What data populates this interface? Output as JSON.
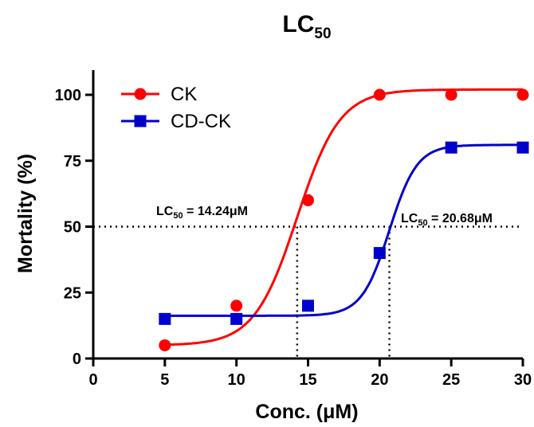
{
  "chart_data": {
    "type": "line",
    "title": "LC",
    "title_subscript": "50",
    "xlabel": "Conc. (μM)",
    "ylabel": "Mortality (%)",
    "xlim": [
      0,
      30
    ],
    "ylim": [
      0,
      100
    ],
    "x_ticks": [
      "0",
      "5",
      "10",
      "15",
      "20",
      "25",
      "30"
    ],
    "y_ticks": [
      "0",
      "25",
      "50",
      "75",
      "100"
    ],
    "grid": false,
    "legend": "top-left",
    "series": [
      {
        "name": "CK",
        "color": "#ff0000",
        "marker": "circle",
        "x": [
          5,
          10,
          15,
          20,
          25,
          30
        ],
        "y": [
          5,
          20,
          60,
          100,
          100,
          100
        ],
        "fit": {
          "bottom": 5,
          "top": 102,
          "ec50": 14.24,
          "hill": 0.29
        }
      },
      {
        "name": "CD-CK",
        "color": "#0000cc",
        "marker": "square",
        "x": [
          5,
          10,
          15,
          20,
          25,
          30
        ],
        "y": [
          15,
          15,
          20,
          40,
          80,
          80
        ],
        "fit": {
          "bottom": 16.2,
          "top": 81,
          "ec50": 20.68,
          "hill": 0.45
        }
      }
    ],
    "reference_y": 50,
    "annotations": [
      {
        "prefix": "LC",
        "sub": "50",
        "text": " = 14.24μM",
        "x": 14.24
      },
      {
        "prefix": "LC",
        "sub": "50",
        "text": " = 20.68μM",
        "x": 20.68
      }
    ]
  }
}
